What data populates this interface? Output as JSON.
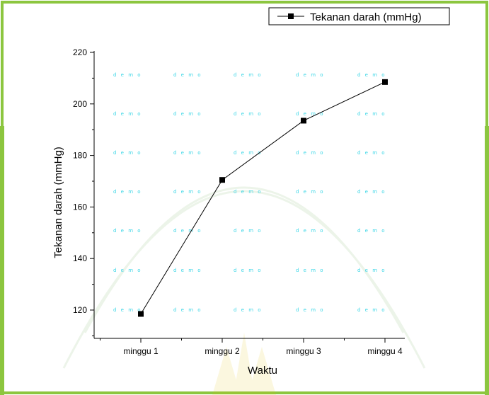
{
  "colors": {
    "frame": "#8cc63f",
    "watermark_text": "#3ad6e6",
    "line": "#000000",
    "marker": "#000000"
  },
  "watermark": {
    "label": "demo"
  },
  "chart_data": {
    "type": "line",
    "categories": [
      "minggu 1",
      "minggu 2",
      "minggu 3",
      "minggu 4"
    ],
    "series": [
      {
        "name": "Tekanan darah (mmHg)",
        "values": [
          118.5,
          170.5,
          193.5,
          208.5
        ]
      }
    ],
    "xlabel": "Waktu",
    "ylabel": "Tekanan darah (mmHg)",
    "ylim": [
      113,
      220
    ],
    "yticks": [
      120,
      140,
      160,
      180,
      200,
      220
    ],
    "grid": false,
    "legend": "top-right",
    "marker": "square"
  }
}
